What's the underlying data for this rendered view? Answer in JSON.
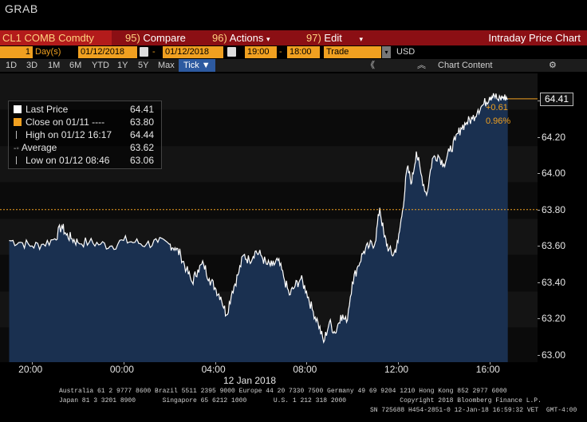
{
  "window": {
    "title": "GRAB"
  },
  "toolbar": {
    "ticker": "CL1 COMB Comdty",
    "compare_num": "95)",
    "compare_label": "Compare",
    "actions_num": "96)",
    "actions_label": "Actions",
    "edit_num": "97)",
    "edit_label": "Edit",
    "panel_title": "Intraday Price Chart"
  },
  "controls": {
    "period_value": "1",
    "period_unit": "Day(s)",
    "start_date": "01/12/2018",
    "end_date": "01/12/2018",
    "start_time": "19:00",
    "end_time": "18:00",
    "event": "Trade",
    "currency": "USD"
  },
  "ranges": [
    "1D",
    "3D",
    "1M",
    "6M",
    "YTD",
    "1Y",
    "5Y",
    "Max"
  ],
  "tick_label": "Tick ▼",
  "chart_content_label": "Chart Content",
  "legend": {
    "last_label": "Last Price",
    "last_value": "64.41",
    "close_label": "Close on 01/11 ----",
    "close_value": "63.80",
    "high_label": "High on 01/12 16:17",
    "high_value": "64.44",
    "avg_label": "Average",
    "avg_value": "63.62",
    "low_label": "Low on 01/12 08:46",
    "low_value": "63.06"
  },
  "colors": {
    "accent": "#f0a020",
    "area": "#1a3050",
    "redbar": "#8b0f14"
  },
  "chart_data": {
    "type": "line",
    "x_tick_labels": [
      "20:00",
      "00:00",
      "04:00",
      "08:00",
      "12:00",
      "16:00"
    ],
    "date_label": "12 Jan 2018",
    "y_tick_labels": [
      "63.00",
      "63.20",
      "63.40",
      "63.60",
      "63.80",
      "64.00",
      "64.20",
      "64.40"
    ],
    "ylim": [
      62.96,
      64.55
    ],
    "x_hours": [
      18.6,
      42.1
    ],
    "x": [
      19.0,
      19.5,
      20.0,
      20.5,
      21.0,
      21.3,
      21.5,
      21.75,
      22.0,
      22.5,
      23.0,
      23.5,
      0.0,
      0.5,
      1.0,
      1.5,
      2.0,
      2.25,
      2.5,
      2.75,
      3.0,
      3.25,
      3.5,
      3.75,
      4.0,
      4.25,
      4.5,
      4.75,
      5.0,
      5.25,
      5.5,
      5.75,
      6.0,
      6.25,
      6.5,
      6.75,
      7.0,
      7.25,
      7.5,
      7.75,
      8.0,
      8.25,
      8.5,
      8.75,
      9.0,
      9.25,
      9.5,
      9.75,
      10.0,
      10.25,
      10.5,
      10.75,
      11.0,
      11.2,
      11.4,
      11.6,
      11.8,
      12.0,
      12.2,
      12.4,
      12.6,
      12.8,
      13.0,
      13.25,
      13.5,
      13.75,
      14.0,
      14.25,
      14.5,
      14.75,
      15.0,
      15.25,
      15.5,
      15.75,
      16.0,
      16.17,
      16.4,
      16.6,
      16.8
    ],
    "y": [
      63.63,
      63.62,
      63.6,
      63.61,
      63.64,
      63.71,
      63.66,
      63.64,
      63.62,
      63.62,
      63.61,
      63.6,
      63.63,
      63.62,
      63.61,
      63.62,
      63.61,
      63.59,
      63.55,
      63.47,
      63.4,
      63.47,
      63.5,
      63.42,
      63.37,
      63.32,
      63.22,
      63.35,
      63.44,
      63.55,
      63.52,
      63.57,
      63.55,
      63.5,
      63.49,
      63.52,
      63.43,
      63.33,
      63.38,
      63.42,
      63.35,
      63.25,
      63.18,
      63.07,
      63.18,
      63.12,
      63.22,
      63.18,
      63.4,
      63.49,
      63.57,
      63.6,
      63.62,
      63.81,
      63.65,
      63.58,
      63.55,
      63.62,
      63.8,
      64.03,
      63.95,
      64.12,
      64.0,
      63.88,
      64.08,
      64.1,
      64.05,
      64.12,
      64.18,
      64.25,
      64.28,
      64.3,
      64.35,
      64.38,
      64.42,
      64.44,
      64.4,
      64.42,
      64.41
    ],
    "reference_line": 63.8,
    "change_abs": "+0.61",
    "change_pct": "0.96%",
    "last_value_label": "64.41"
  },
  "footer": {
    "line1": "Australia 61 2 9777 8600 Brazil 5511 2395 9000 Europe 44 20 7330 7500 Germany 49 69 9204 1210 Hong Kong 852 2977 6000",
    "line2": "Japan 81 3 3201 8900       Singapore 65 6212 1000       U.S. 1 212 318 2000              Copyright 2018 Bloomberg Finance L.P.",
    "line3": "SN 725688 H454-2851-0 12-Jan-18 16:59:32 VET  GMT-4:00"
  }
}
